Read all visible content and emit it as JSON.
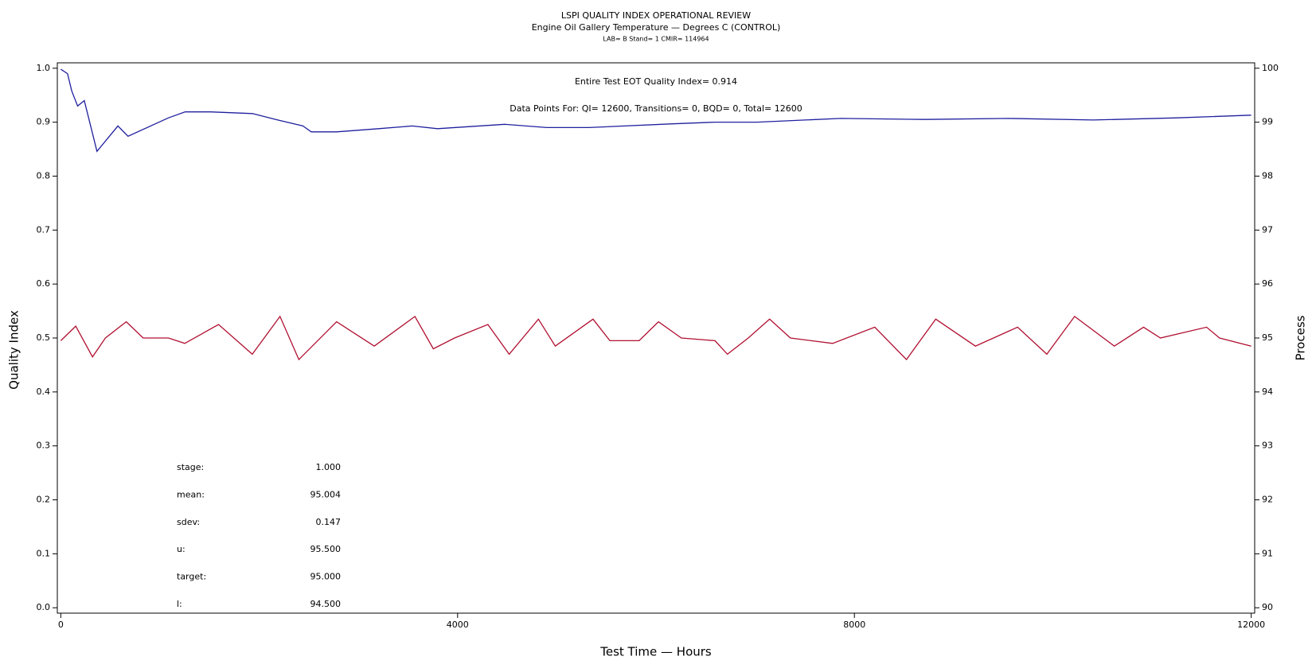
{
  "chart_data": {
    "type": "line",
    "title": "LSPI QUALITY INDEX OPERATIONAL REVIEW",
    "subtitle": "Engine Oil Gallery Temperature — Degrees C (CONTROL)",
    "subtitle2": "LAB= B Stand= 1 CMIR= 114964",
    "xlabel": "Test Time — Hours",
    "ylabel": "Quality Index",
    "y2label": "Process",
    "annotations": [
      "Entire Test EOT Quality Index=   0.914",
      "Data Points For: QI= 12600, Transitions=     0, BQD=     0, Total= 12600"
    ],
    "stats": [
      {
        "label": "stage:",
        "value": "1.000"
      },
      {
        "label": "mean:",
        "value": "95.004"
      },
      {
        "label": "sdev:",
        "value": "0.147"
      },
      {
        "label": "u:",
        "value": "95.500"
      },
      {
        "label": "target:",
        "value": "95.000"
      },
      {
        "label": "l:",
        "value": "94.500"
      }
    ],
    "xlim": [
      -35,
      12035
    ],
    "xticks": [
      0,
      4000,
      8000,
      12000
    ],
    "ylim": [
      -0.01,
      1.01
    ],
    "yticks": [
      {
        "value": 0,
        "label": "0.0"
      },
      0.1,
      0.2,
      0.3,
      0.4,
      0.5,
      0.6,
      0.7,
      0.8,
      0.9,
      {
        "value": 1,
        "label": "1.0"
      }
    ],
    "y2lim": [
      89.9,
      100.1
    ],
    "y2ticks": [
      90,
      91,
      92,
      93,
      94,
      95,
      96,
      97,
      98,
      99,
      100
    ],
    "series": [
      {
        "name": "Quality Index",
        "color": "#1f1f9e",
        "x": [
          0,
          68,
          110,
          170,
          237,
          365,
          576,
          678,
          1085,
          1254,
          1509,
          1932,
          2187,
          2441,
          2525,
          2780,
          3203,
          3543,
          3797,
          4475,
          4898,
          5322,
          6170,
          6594,
          7017,
          7865,
          8712,
          9560,
          10407,
          11254,
          12000
        ],
        "values": [
          0.998,
          0.99,
          0.958,
          0.93,
          0.94,
          0.846,
          0.893,
          0.874,
          0.908,
          0.919,
          0.919,
          0.916,
          0.904,
          0.893,
          0.882,
          0.882,
          0.888,
          0.893,
          0.888,
          0.896,
          0.89,
          0.89,
          0.897,
          0.9,
          0.9,
          0.907,
          0.905,
          0.907,
          0.904,
          0.908,
          0.913
        ]
      },
      {
        "name": "Process",
        "color": "#b01030",
        "axis": "y2",
        "x": [
          0,
          150,
          320,
          450,
          660,
          830,
          1085,
          1250,
          1590,
          1930,
          2210,
          2400,
          2780,
          3160,
          3570,
          3755,
          3970,
          4305,
          4520,
          4815,
          4985,
          5365,
          5535,
          5830,
          6025,
          6255,
          6595,
          6720,
          6930,
          7145,
          7355,
          7780,
          8205,
          8525,
          8820,
          9220,
          9645,
          9940,
          10220,
          10620,
          10915,
          11085,
          11550,
          11680,
          12000
        ],
        "values": [
          94.95,
          95.22,
          94.65,
          95.0,
          95.3,
          95.0,
          95.0,
          94.9,
          95.25,
          94.7,
          95.4,
          94.6,
          95.3,
          94.85,
          95.4,
          94.8,
          95.0,
          95.25,
          94.7,
          95.35,
          94.85,
          95.35,
          94.95,
          94.95,
          95.3,
          95.0,
          94.95,
          94.7,
          95.0,
          95.35,
          95.0,
          94.9,
          95.2,
          94.6,
          95.35,
          94.85,
          95.2,
          94.7,
          95.4,
          94.85,
          95.2,
          95.0,
          95.2,
          95.0,
          94.85
        ]
      }
    ]
  }
}
